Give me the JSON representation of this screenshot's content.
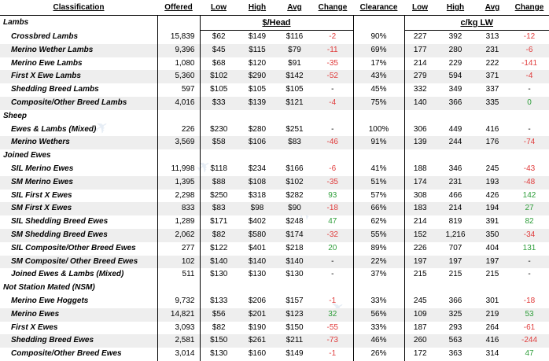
{
  "headers": {
    "classification": "Classification",
    "offered": "Offered",
    "low1": "Low",
    "high1": "High",
    "avg1": "Avg",
    "change1": "Change",
    "clearance": "Clearance",
    "low2": "Low",
    "high2": "High",
    "avg2": "Avg",
    "change2": "Change",
    "unit_head": "$/Head",
    "unit_kg": "c/kg LW"
  },
  "sections": [
    {
      "title": "Lambs",
      "rows": [
        {
          "name": "Crossbred Lambs",
          "offered": "15,839",
          "low": "$62",
          "high": "$149",
          "avg": "$116",
          "chg": "-2",
          "chgc": "neg",
          "clr": "90%",
          "low2": "227",
          "high2": "392",
          "avg2": "313",
          "chg2": "-12",
          "chg2c": "neg"
        },
        {
          "name": "Merino Wether Lambs",
          "offered": "9,396",
          "low": "$45",
          "high": "$115",
          "avg": "$79",
          "chg": "-11",
          "chgc": "neg",
          "clr": "69%",
          "low2": "177",
          "high2": "280",
          "avg2": "231",
          "chg2": "-6",
          "chg2c": "neg"
        },
        {
          "name": "Merino Ewe Lambs",
          "offered": "1,080",
          "low": "$68",
          "high": "$120",
          "avg": "$91",
          "chg": "-35",
          "chgc": "neg",
          "clr": "17%",
          "low2": "214",
          "high2": "229",
          "avg2": "222",
          "chg2": "-141",
          "chg2c": "neg"
        },
        {
          "name": "First X Ewe Lambs",
          "offered": "5,360",
          "low": "$102",
          "high": "$290",
          "avg": "$142",
          "chg": "-52",
          "chgc": "neg",
          "clr": "43%",
          "low2": "279",
          "high2": "594",
          "avg2": "371",
          "chg2": "-4",
          "chg2c": "neg"
        },
        {
          "name": "Shedding Breed Lambs",
          "offered": "597",
          "low": "$105",
          "high": "$105",
          "avg": "$105",
          "chg": "-",
          "chgc": "",
          "clr": "45%",
          "low2": "332",
          "high2": "349",
          "avg2": "337",
          "chg2": "-",
          "chg2c": ""
        },
        {
          "name": "Composite/Other Breed Lambs",
          "offered": "4,016",
          "low": "$33",
          "high": "$139",
          "avg": "$121",
          "chg": "-4",
          "chgc": "neg",
          "clr": "75%",
          "low2": "140",
          "high2": "366",
          "avg2": "335",
          "chg2": "0",
          "chg2c": "pos"
        }
      ]
    },
    {
      "title": "Sheep",
      "rows": [
        {
          "name": "Ewes & Lambs (Mixed)",
          "offered": "226",
          "low": "$230",
          "high": "$280",
          "avg": "$251",
          "chg": "-",
          "chgc": "",
          "clr": "100%",
          "low2": "306",
          "high2": "449",
          "avg2": "416",
          "chg2": "-",
          "chg2c": ""
        },
        {
          "name": "Merino Wethers",
          "offered": "3,569",
          "low": "$58",
          "high": "$106",
          "avg": "$83",
          "chg": "-46",
          "chgc": "neg",
          "clr": "91%",
          "low2": "139",
          "high2": "244",
          "avg2": "176",
          "chg2": "-74",
          "chg2c": "neg"
        }
      ]
    },
    {
      "title": "Joined Ewes",
      "rows": [
        {
          "name": "SIL Merino Ewes",
          "offered": "11,998",
          "low": "$118",
          "high": "$234",
          "avg": "$166",
          "chg": "-6",
          "chgc": "neg",
          "clr": "41%",
          "low2": "188",
          "high2": "346",
          "avg2": "245",
          "chg2": "-43",
          "chg2c": "neg"
        },
        {
          "name": "SM Merino Ewes",
          "offered": "1,395",
          "low": "$88",
          "high": "$108",
          "avg": "$102",
          "chg": "-35",
          "chgc": "neg",
          "clr": "51%",
          "low2": "174",
          "high2": "231",
          "avg2": "193",
          "chg2": "-48",
          "chg2c": "neg"
        },
        {
          "name": "SIL First X Ewes",
          "offered": "2,298",
          "low": "$250",
          "high": "$318",
          "avg": "$282",
          "chg": "93",
          "chgc": "pos",
          "clr": "57%",
          "low2": "308",
          "high2": "466",
          "avg2": "426",
          "chg2": "142",
          "chg2c": "pos"
        },
        {
          "name": "SM First X Ewes",
          "offered": "833",
          "low": "$83",
          "high": "$98",
          "avg": "$90",
          "chg": "-18",
          "chgc": "neg",
          "clr": "66%",
          "low2": "183",
          "high2": "214",
          "avg2": "194",
          "chg2": "27",
          "chg2c": "pos"
        },
        {
          "name": "SIL Shedding Breed Ewes",
          "offered": "1,289",
          "low": "$171",
          "high": "$402",
          "avg": "$248",
          "chg": "47",
          "chgc": "pos",
          "clr": "62%",
          "low2": "214",
          "high2": "819",
          "avg2": "391",
          "chg2": "82",
          "chg2c": "pos"
        },
        {
          "name": "SM Shedding Breed Ewes",
          "offered": "2,062",
          "low": "$82",
          "high": "$580",
          "avg": "$174",
          "chg": "-32",
          "chgc": "neg",
          "clr": "55%",
          "low2": "152",
          "high2": "1,216",
          "avg2": "350",
          "chg2": "-34",
          "chg2c": "neg"
        },
        {
          "name": "SIL Composite/Other Breed Ewes",
          "offered": "277",
          "low": "$122",
          "high": "$401",
          "avg": "$218",
          "chg": "20",
          "chgc": "pos",
          "clr": "89%",
          "low2": "226",
          "high2": "707",
          "avg2": "404",
          "chg2": "131",
          "chg2c": "pos"
        },
        {
          "name": "SM Composite/ Other Breed Ewes",
          "offered": "102",
          "low": "$140",
          "high": "$140",
          "avg": "$140",
          "chg": "-",
          "chgc": "",
          "clr": "22%",
          "low2": "197",
          "high2": "197",
          "avg2": "197",
          "chg2": "-",
          "chg2c": ""
        },
        {
          "name": "Joined Ewes & Lambs (Mixed)",
          "offered": "511",
          "low": "$130",
          "high": "$130",
          "avg": "$130",
          "chg": "-",
          "chgc": "",
          "clr": "37%",
          "low2": "215",
          "high2": "215",
          "avg2": "215",
          "chg2": "-",
          "chg2c": ""
        }
      ]
    },
    {
      "title": "Not Station Mated (NSM)",
      "rows": [
        {
          "name": "Merino Ewe Hoggets",
          "offered": "9,732",
          "low": "$133",
          "high": "$206",
          "avg": "$157",
          "chg": "-1",
          "chgc": "neg",
          "clr": "33%",
          "low2": "245",
          "high2": "366",
          "avg2": "301",
          "chg2": "-18",
          "chg2c": "neg"
        },
        {
          "name": "Merino Ewes",
          "offered": "14,821",
          "low": "$56",
          "high": "$201",
          "avg": "$123",
          "chg": "32",
          "chgc": "pos",
          "clr": "56%",
          "low2": "109",
          "high2": "325",
          "avg2": "219",
          "chg2": "53",
          "chg2c": "pos"
        },
        {
          "name": "First X Ewes",
          "offered": "3,093",
          "low": "$82",
          "high": "$190",
          "avg": "$150",
          "chg": "-55",
          "chgc": "neg",
          "clr": "33%",
          "low2": "187",
          "high2": "293",
          "avg2": "264",
          "chg2": "-61",
          "chg2c": "neg"
        },
        {
          "name": "Shedding Breed Ewes",
          "offered": "2,581",
          "low": "$150",
          "high": "$261",
          "avg": "$211",
          "chg": "-73",
          "chgc": "neg",
          "clr": "46%",
          "low2": "260",
          "high2": "563",
          "avg2": "416",
          "chg2": "-244",
          "chg2c": "neg"
        },
        {
          "name": "Composite/Other Breed Ewes",
          "offered": "3,014",
          "low": "$130",
          "high": "$160",
          "avg": "$149",
          "chg": "-1",
          "chgc": "neg",
          "clr": "26%",
          "low2": "172",
          "high2": "363",
          "avg2": "314",
          "chg2": "47",
          "chg2c": "pos"
        }
      ]
    }
  ]
}
